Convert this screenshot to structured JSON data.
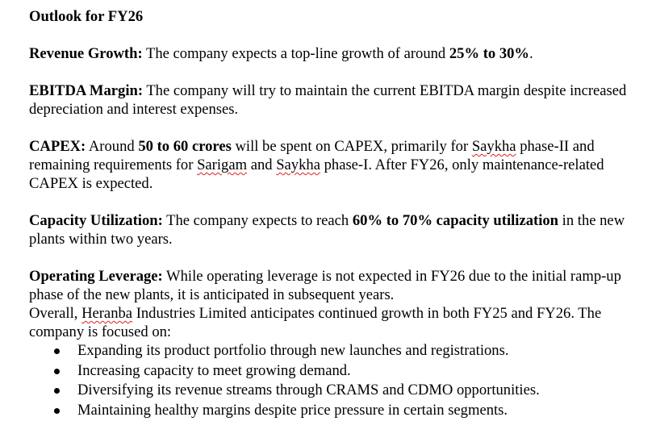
{
  "title": "Outlook for FY26",
  "revenue": {
    "label": "Revenue Growth:",
    "text_before": " The company expects a top-line growth of around ",
    "value": "25% to 30%",
    "text_after": "."
  },
  "ebitda": {
    "label": "EBITDA Margin:",
    "text": " The company will try to maintain the current EBITDA margin despite increased depreciation and interest expenses."
  },
  "capex": {
    "label": "CAPEX:",
    "t1": " Around ",
    "amount": "50 to 60 crores",
    "t2": " will be spent on CAPEX, primarily for ",
    "w1": "Saykha",
    "t3": " phase-II and remaining requirements for ",
    "w2": "Sarigam",
    "t4": " and ",
    "w3": "Saykha",
    "t5": " phase-I. After FY26, only maintenance-related CAPEX is expected."
  },
  "capacity": {
    "label": "Capacity Utilization:",
    "t1": " The company expects to reach ",
    "value": "60% to 70% capacity utilization",
    "t2": " in the new plants within two years."
  },
  "leverage": {
    "label": "Operating Leverage:",
    "text": " While operating leverage is not expected in FY26 due to the initial ramp-up phase of the new plants, it is anticipated in subsequent years."
  },
  "overall": {
    "t1": "Overall, ",
    "w1": "Heranba",
    "t2": " Industries Limited anticipates continued growth in both FY25 and FY26. The company is focused on:"
  },
  "bullets": [
    "Expanding its product portfolio through new launches and registrations.",
    "Increasing capacity to meet growing demand.",
    "Diversifying its revenue streams through CRAMS and CDMO opportunities.",
    "Maintaining healthy margins despite price pressure in certain segments."
  ]
}
